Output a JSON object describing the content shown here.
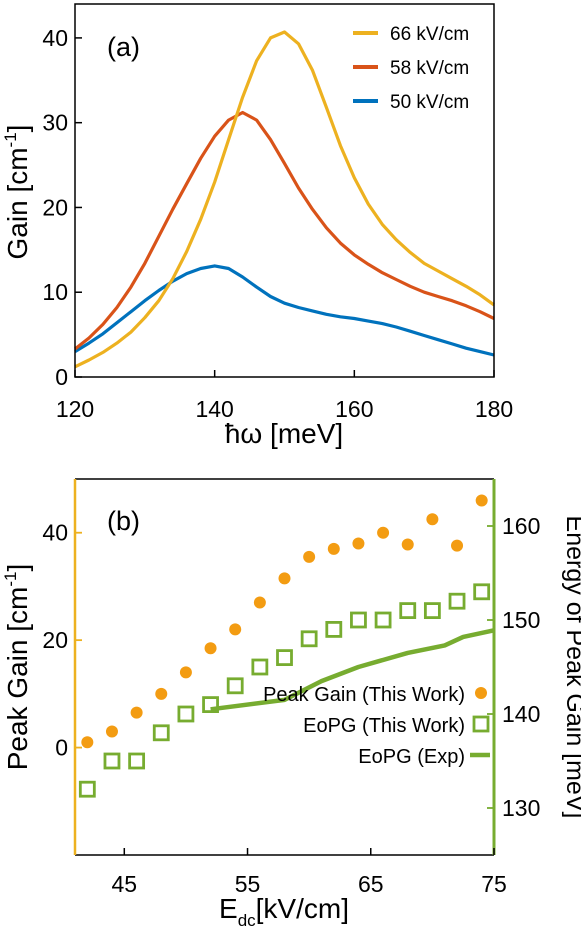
{
  "chart_data": [
    {
      "type": "line",
      "panel_label": "(a)",
      "xlabel": "ħω [meV]",
      "ylabel_main": "Gain [cm",
      "ylabel_sup": "-1",
      "ylabel_end": "]",
      "xlim": [
        120,
        180
      ],
      "ylim": [
        0,
        44
      ],
      "xticks": [
        120,
        140,
        160,
        180
      ],
      "yticks": [
        0,
        10,
        20,
        30,
        40
      ],
      "grid": false,
      "legend_position": "top-right",
      "series": [
        {
          "name": "66 kV/cm",
          "color": "#EDB120",
          "x": [
            120,
            122,
            124,
            126,
            128,
            130,
            132,
            134,
            136,
            138,
            140,
            142,
            144,
            146,
            148,
            150,
            152,
            154,
            156,
            158,
            160,
            162,
            164,
            166,
            168,
            170,
            172,
            174,
            176,
            178,
            180
          ],
          "y": [
            1.2,
            2.0,
            2.9,
            4.0,
            5.3,
            7.0,
            9.0,
            11.6,
            14.8,
            18.6,
            23.0,
            28.0,
            33.0,
            37.3,
            40.0,
            40.7,
            39.3,
            36.2,
            31.8,
            27.3,
            23.5,
            20.4,
            18.0,
            16.2,
            14.7,
            13.4,
            12.5,
            11.6,
            10.7,
            9.7,
            8.5
          ]
        },
        {
          "name": "58 kV/cm",
          "color": "#D95319",
          "x": [
            120,
            122,
            124,
            126,
            128,
            130,
            132,
            134,
            136,
            138,
            140,
            142,
            144,
            146,
            148,
            150,
            152,
            154,
            156,
            158,
            160,
            162,
            164,
            166,
            168,
            170,
            172,
            174,
            176,
            178,
            180
          ],
          "y": [
            3.3,
            4.6,
            6.2,
            8.2,
            10.6,
            13.4,
            16.6,
            19.8,
            22.8,
            25.8,
            28.4,
            30.3,
            31.2,
            30.3,
            28.0,
            25.2,
            22.3,
            19.8,
            17.6,
            15.8,
            14.4,
            13.3,
            12.3,
            11.5,
            10.7,
            10.0,
            9.5,
            9.0,
            8.4,
            7.7,
            6.9
          ]
        },
        {
          "name": "50 kV/cm",
          "color": "#0072BD",
          "x": [
            120,
            122,
            124,
            126,
            128,
            130,
            132,
            134,
            136,
            138,
            140,
            142,
            144,
            146,
            148,
            150,
            152,
            154,
            156,
            158,
            160,
            162,
            164,
            166,
            168,
            170,
            172,
            174,
            176,
            178,
            180
          ],
          "y": [
            3.0,
            4.0,
            5.1,
            6.4,
            7.7,
            9.0,
            10.2,
            11.3,
            12.2,
            12.8,
            13.1,
            12.8,
            11.8,
            10.6,
            9.5,
            8.7,
            8.2,
            7.8,
            7.4,
            7.1,
            6.9,
            6.6,
            6.3,
            5.9,
            5.4,
            4.9,
            4.4,
            3.9,
            3.4,
            3.0,
            2.6
          ]
        }
      ]
    },
    {
      "type": "scatter",
      "panel_label": "(b)",
      "xlabel_main": "E",
      "xlabel_sub": "dc",
      "xlabel_end": "[kV/cm]",
      "ylabel_left_main": "Peak Gain [cm",
      "ylabel_left_sup": "-1",
      "ylabel_left_end": "]",
      "ylabel_right": "Energy of Peak Gain [meV]",
      "xlim": [
        41,
        75
      ],
      "ylim_left": [
        -20,
        50
      ],
      "ylim_right": [
        125,
        165
      ],
      "xticks": [
        45,
        55,
        65,
        75
      ],
      "yticks_left": [
        0,
        20,
        40
      ],
      "yticks_right": [
        130,
        140,
        150,
        160
      ],
      "left_axis_color": "#EDB120",
      "right_axis_color": "#77AC30",
      "grid": false,
      "legend_position": "bottom-right",
      "series": [
        {
          "name": "Peak Gain (This Work)",
          "axis": "left",
          "marker": "circle",
          "color": "#F39C12",
          "x": [
            42,
            44,
            46,
            48,
            50,
            52,
            54,
            56,
            58,
            60,
            62,
            64,
            66,
            68,
            70,
            72,
            74
          ],
          "y": [
            1,
            3,
            6.5,
            10,
            14,
            18.5,
            22,
            27,
            31.5,
            35.5,
            37,
            38,
            40,
            37.8,
            42.5,
            37.6,
            46
          ]
        },
        {
          "name": "EoPG (This Work)",
          "axis": "right",
          "marker": "square",
          "color": "#77AC30",
          "x": [
            42,
            44,
            46,
            48,
            50,
            52,
            54,
            56,
            58,
            60,
            62,
            64,
            66,
            68,
            70,
            72,
            74
          ],
          "y": [
            132,
            135,
            135,
            138,
            140,
            141,
            143,
            145,
            146,
            148,
            149,
            150,
            150,
            151,
            151,
            152,
            153
          ]
        },
        {
          "name": "EoPG (Exp)",
          "axis": "right",
          "marker": "line",
          "color": "#77AC30",
          "x": [
            52,
            58,
            61,
            64,
            68,
            71,
            72.5,
            75
          ],
          "y": [
            140.5,
            141.5,
            143.5,
            145,
            146.5,
            147.3,
            148.2,
            148.9
          ]
        }
      ]
    }
  ]
}
